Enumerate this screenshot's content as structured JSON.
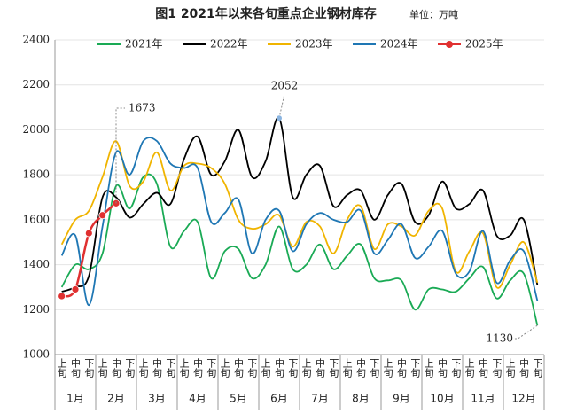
{
  "chart_data": {
    "type": "line",
    "title": "图1 2021年以来各旬重点企业钢材库存",
    "unit": "单位：万吨",
    "categories": [
      "上旬",
      "中旬",
      "下旬",
      "上旬",
      "中旬",
      "下旬",
      "上旬",
      "中旬",
      "下旬",
      "上旬",
      "中旬",
      "下旬",
      "上旬",
      "中旬",
      "下旬",
      "上旬",
      "中旬",
      "下旬",
      "上旬",
      "中旬",
      "下旬",
      "上旬",
      "中旬",
      "下旬",
      "上旬",
      "中旬",
      "下旬",
      "上旬",
      "中旬",
      "下旬",
      "上旬",
      "中旬",
      "下旬",
      "上旬",
      "中旬",
      "下旬"
    ],
    "months": [
      "1月",
      "2月",
      "3月",
      "4月",
      "5月",
      "6月",
      "7月",
      "8月",
      "9月",
      "10月",
      "11月",
      "12月"
    ],
    "series": [
      {
        "name": "2021年",
        "color": "#1aaa55",
        "values": [
          1300,
          1400,
          1380,
          1450,
          1750,
          1650,
          1790,
          1760,
          1480,
          1550,
          1590,
          1340,
          1460,
          1470,
          1340,
          1400,
          1570,
          1380,
          1400,
          1490,
          1380,
          1440,
          1490,
          1340,
          1330,
          1330,
          1200,
          1290,
          1290,
          1280,
          1340,
          1390,
          1250,
          1330,
          1360,
          1130
        ]
      },
      {
        "name": "2022年",
        "color": "#000000",
        "values": [
          1280,
          1300,
          1350,
          1700,
          1700,
          1610,
          1670,
          1720,
          1670,
          1870,
          1970,
          1800,
          1860,
          2000,
          1790,
          1860,
          2052,
          1700,
          1800,
          1840,
          1660,
          1710,
          1730,
          1600,
          1710,
          1760,
          1590,
          1620,
          1770,
          1650,
          1670,
          1730,
          1530,
          1530,
          1600,
          1310
        ]
      },
      {
        "name": "2023年",
        "color": "#f0b400",
        "values": [
          1490,
          1600,
          1640,
          1790,
          1950,
          1750,
          1770,
          1900,
          1730,
          1840,
          1850,
          1830,
          1760,
          1600,
          1560,
          1580,
          1620,
          1480,
          1590,
          1570,
          1450,
          1600,
          1660,
          1470,
          1580,
          1570,
          1530,
          1640,
          1650,
          1370,
          1460,
          1540,
          1300,
          1400,
          1500,
          1320
        ]
      },
      {
        "name": "2024年",
        "color": "#1f77b4",
        "values": [
          1440,
          1530,
          1220,
          1570,
          1900,
          1800,
          1950,
          1950,
          1850,
          1830,
          1830,
          1590,
          1630,
          1690,
          1450,
          1600,
          1640,
          1460,
          1580,
          1630,
          1600,
          1590,
          1640,
          1450,
          1510,
          1580,
          1430,
          1480,
          1550,
          1360,
          1370,
          1550,
          1320,
          1420,
          1460,
          1240
        ]
      },
      {
        "name": "2025年",
        "color": "#e03030",
        "markers": true,
        "values": [
          1260,
          1290,
          1540,
          1620,
          1673,
          null,
          null,
          null,
          null,
          null,
          null,
          null,
          null,
          null,
          null,
          null,
          null,
          null,
          null,
          null,
          null,
          null,
          null,
          null,
          null,
          null,
          null,
          null,
          null,
          null,
          null,
          null,
          null,
          null,
          null,
          null
        ]
      }
    ],
    "ylim": [
      1000,
      2400
    ],
    "yticks": [
      1000,
      1200,
      1400,
      1600,
      1800,
      2000,
      2200,
      2400
    ],
    "grid": true,
    "legend": "top"
  }
}
